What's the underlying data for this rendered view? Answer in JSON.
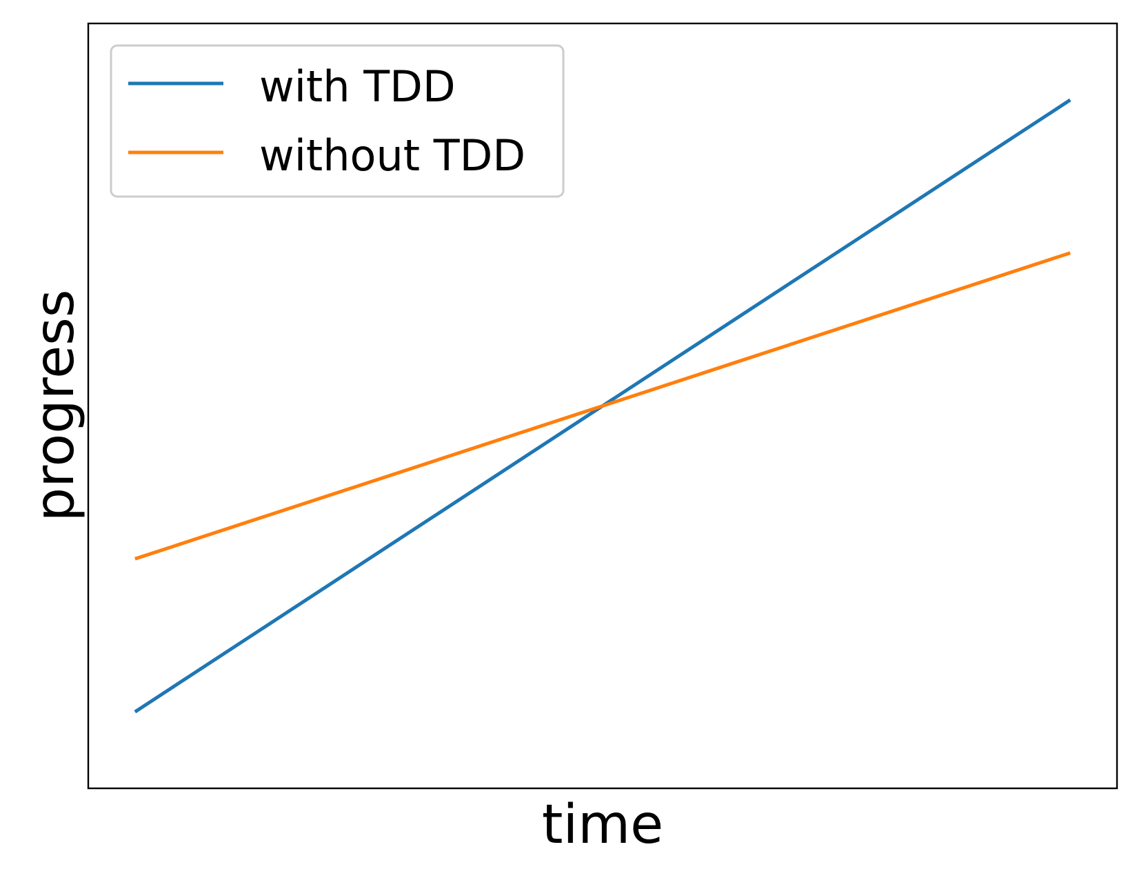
{
  "colors": {
    "series_0": "#1f77b4",
    "series_1": "#ff7f0e",
    "axes": "#000000",
    "legend_border": "#cccccc"
  },
  "chart_data": {
    "type": "line",
    "title": "",
    "xlabel": "time",
    "ylabel": "progress",
    "x_ticks_visible": false,
    "y_ticks_visible": false,
    "grid": false,
    "legend_position": "upper-left",
    "xlim": [
      -0.05,
      1.05
    ],
    "ylim": [
      0.05,
      1.05
    ],
    "series": [
      {
        "name": "with TDD",
        "x": [
          0,
          1
        ],
        "y": [
          0.15,
          0.95
        ]
      },
      {
        "name": "without TDD",
        "x": [
          0,
          1
        ],
        "y": [
          0.35,
          0.75
        ]
      }
    ]
  }
}
